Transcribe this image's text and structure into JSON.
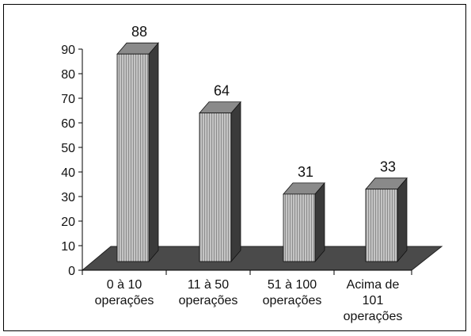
{
  "chart_data": {
    "type": "bar",
    "categories": [
      [
        "0 à 10",
        "operações"
      ],
      [
        "11 à 50",
        "operações"
      ],
      [
        "51 à 100",
        "operações"
      ],
      [
        "Acima de",
        "101",
        "operações"
      ]
    ],
    "values": [
      88,
      64,
      31,
      33
    ],
    "data_labels": [
      "88",
      "64",
      "31",
      "33"
    ],
    "ylim": [
      0,
      90
    ],
    "yticks": [
      0,
      10,
      20,
      30,
      40,
      50,
      60,
      70,
      80,
      90
    ],
    "ytick_labels": [
      "0",
      "10",
      "20",
      "30",
      "40",
      "50",
      "60",
      "70",
      "80",
      "90"
    ],
    "title": "",
    "xlabel": "",
    "ylabel": "",
    "grid": false,
    "legend": "none",
    "style": "3d-bars",
    "colors": {
      "bar_front": "#bdbdbd",
      "bar_top": "#8a8a8a",
      "bar_side": "#3a3a3a",
      "floor": "#4a4a4a",
      "axis": "#000000"
    }
  }
}
